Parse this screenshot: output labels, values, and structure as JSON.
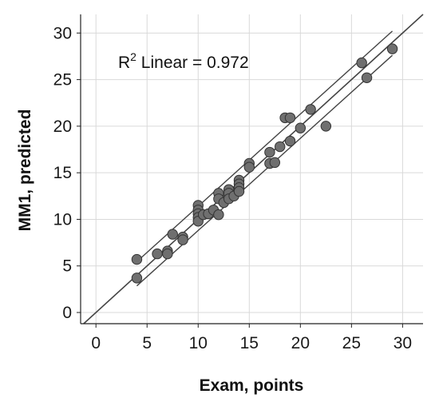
{
  "chart_data": {
    "type": "scatter",
    "xlabel": "Exam, points",
    "ylabel": "MM1, predicted",
    "xlim": [
      -1.5,
      32
    ],
    "ylim": [
      -1.2,
      32
    ],
    "xticks": [
      "0",
      "5",
      "10",
      "15",
      "20",
      "25",
      "30"
    ],
    "yticks": [
      "0",
      "5",
      "10",
      "15",
      "20",
      "25",
      "30"
    ],
    "grid": true,
    "annotation": {
      "r2_symbol": "R",
      "r2_sup": "2",
      "text": " Linear = 0.972"
    },
    "identity_line": true,
    "fit_line_color": "#444444",
    "marker_fill": "#6f6f6f",
    "marker_stroke": "#333333",
    "gridline_color": "#d9d9d9",
    "series": [
      {
        "points": [
          {
            "x": 4,
            "y": 5.7
          },
          {
            "x": 4,
            "y": 3.7
          },
          {
            "x": 6,
            "y": 6.3
          },
          {
            "x": 7,
            "y": 6.6
          },
          {
            "x": 7,
            "y": 6.3
          },
          {
            "x": 7.5,
            "y": 8.4
          },
          {
            "x": 8.5,
            "y": 8.1
          },
          {
            "x": 8.5,
            "y": 7.8
          },
          {
            "x": 10,
            "y": 11.5
          },
          {
            "x": 10,
            "y": 11.0
          },
          {
            "x": 10,
            "y": 10.6
          },
          {
            "x": 10,
            "y": 10.2
          },
          {
            "x": 10,
            "y": 9.8
          },
          {
            "x": 10.5,
            "y": 10.5
          },
          {
            "x": 11,
            "y": 10.6
          },
          {
            "x": 11.5,
            "y": 11.0
          },
          {
            "x": 12,
            "y": 12.8
          },
          {
            "x": 12,
            "y": 12.2
          },
          {
            "x": 12,
            "y": 10.5
          },
          {
            "x": 12.5,
            "y": 11.8
          },
          {
            "x": 13,
            "y": 13.2
          },
          {
            "x": 13,
            "y": 12.8
          },
          {
            "x": 13,
            "y": 12.2
          },
          {
            "x": 13.5,
            "y": 12.5
          },
          {
            "x": 14,
            "y": 14.2
          },
          {
            "x": 14,
            "y": 13.8
          },
          {
            "x": 14,
            "y": 13.4
          },
          {
            "x": 14,
            "y": 13.0
          },
          {
            "x": 15,
            "y": 16.0
          },
          {
            "x": 15,
            "y": 15.6
          },
          {
            "x": 17,
            "y": 17.2
          },
          {
            "x": 17,
            "y": 16.0
          },
          {
            "x": 17.5,
            "y": 16.1
          },
          {
            "x": 18,
            "y": 17.8
          },
          {
            "x": 18.5,
            "y": 20.9
          },
          {
            "x": 19,
            "y": 20.9
          },
          {
            "x": 19,
            "y": 18.4
          },
          {
            "x": 20,
            "y": 19.8
          },
          {
            "x": 21,
            "y": 21.8
          },
          {
            "x": 22.5,
            "y": 20.0
          },
          {
            "x": 26,
            "y": 26.8
          },
          {
            "x": 26.5,
            "y": 25.2
          },
          {
            "x": 29,
            "y": 28.3
          }
        ]
      }
    ],
    "fit": {
      "slope": 0.99,
      "intercept": 0.2,
      "x_start": 4,
      "x_end": 29,
      "band_offset": 1.3
    }
  }
}
